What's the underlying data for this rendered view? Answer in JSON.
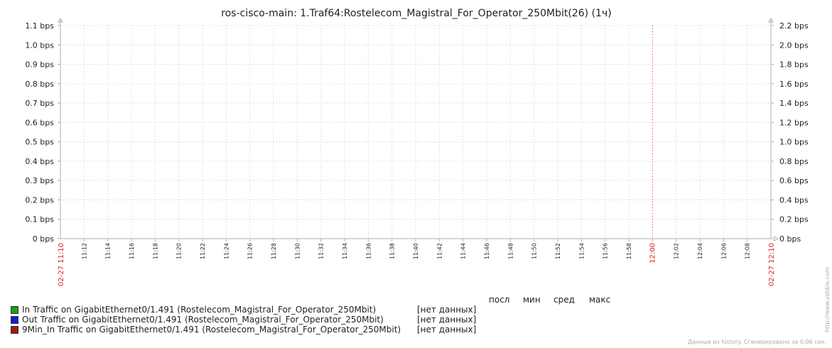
{
  "chart_data": {
    "type": "line",
    "title": "ros-cisco-main: 1.Traf64:Rostelecom_Magistral_For_Operator_250Mbit(26) (1ч)",
    "y_left_ticks": [
      "0 bps",
      "0.1 bps",
      "0.2 bps",
      "0.3 bps",
      "0.4 bps",
      "0.5 bps",
      "0.6 bps",
      "0.7 bps",
      "0.8 bps",
      "0.9 bps",
      "1.0 bps",
      "1.1 bps"
    ],
    "y_right_ticks": [
      "0 bps",
      "0.2 bps",
      "0.4 bps",
      "0.6 bps",
      "0.8 bps",
      "1.0 bps",
      "1.2 bps",
      "1.4 bps",
      "1.6 bps",
      "1.8 bps",
      "2.0 bps",
      "2.2 bps"
    ],
    "ylim_left": [
      0,
      1.1
    ],
    "ylim_right": [
      0,
      2.2
    ],
    "x_start_label": "02-27 11:10",
    "x_end_label": "02-27 12:10",
    "x_ticks": [
      "11:12",
      "11:14",
      "11:16",
      "11:18",
      "11:20",
      "11:22",
      "11:24",
      "11:26",
      "11:28",
      "11:30",
      "11:32",
      "11:34",
      "11:36",
      "11:38",
      "11:40",
      "11:42",
      "11:44",
      "11:46",
      "11:48",
      "11:50",
      "11:52",
      "11:54",
      "11:56",
      "11:58",
      "12:00",
      "12:02",
      "12:04",
      "12:06",
      "12:08"
    ],
    "x_highlight": "12:00",
    "grid": true,
    "series": [
      {
        "name": "In Traffic on GigabitEthernet0/1.491 (Rostelecom_Magistral_For_Operator_250Mbit)",
        "color": "#1a9e1a",
        "values": []
      },
      {
        "name": "Out Traffic on GigabitEthernet0/1.491 (Rostelecom_Magistral_For_Operator_250Mbit)",
        "color": "#1a1ad0",
        "values": []
      },
      {
        "name": "9Min_In Traffic on GigabitEthernet0/1.491 (Rostelecom_Magistral_For_Operator_250Mbit)",
        "color": "#9e1a1a",
        "values": []
      }
    ]
  },
  "legend": {
    "columns": [
      "посл",
      "мин",
      "сред",
      "макс"
    ],
    "no_data": "[нет данных]"
  },
  "watermark": "http://www.zabbix.com",
  "footer": "Данные из history. Сгенерировано за 0.06 сек.",
  "colors": {
    "grid": "#cccccc",
    "axis": "#a0b0b8",
    "highlight": "#dd2222",
    "text": "#222222"
  }
}
